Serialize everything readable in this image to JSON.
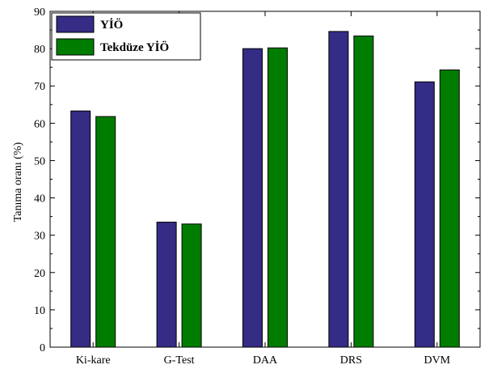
{
  "chart_data": {
    "type": "bar",
    "categories": [
      "Ki-kare",
      "G-Test",
      "DAA",
      "DRS",
      "DVM"
    ],
    "series": [
      {
        "name": "YİÖ",
        "color": "#342c85",
        "values": [
          63.3,
          33.5,
          80.0,
          84.6,
          71.1
        ]
      },
      {
        "name": "Tekdüze YİÖ",
        "color": "#007c00",
        "values": [
          61.8,
          33.0,
          80.2,
          83.4,
          74.3
        ]
      }
    ],
    "xlabel": "",
    "ylabel": "Tanıma oranı (%)",
    "ylim": [
      0,
      90
    ],
    "yticks": [
      0,
      10,
      20,
      30,
      40,
      50,
      60,
      70,
      80,
      90
    ],
    "legend_position": "top-left",
    "grid": false
  }
}
